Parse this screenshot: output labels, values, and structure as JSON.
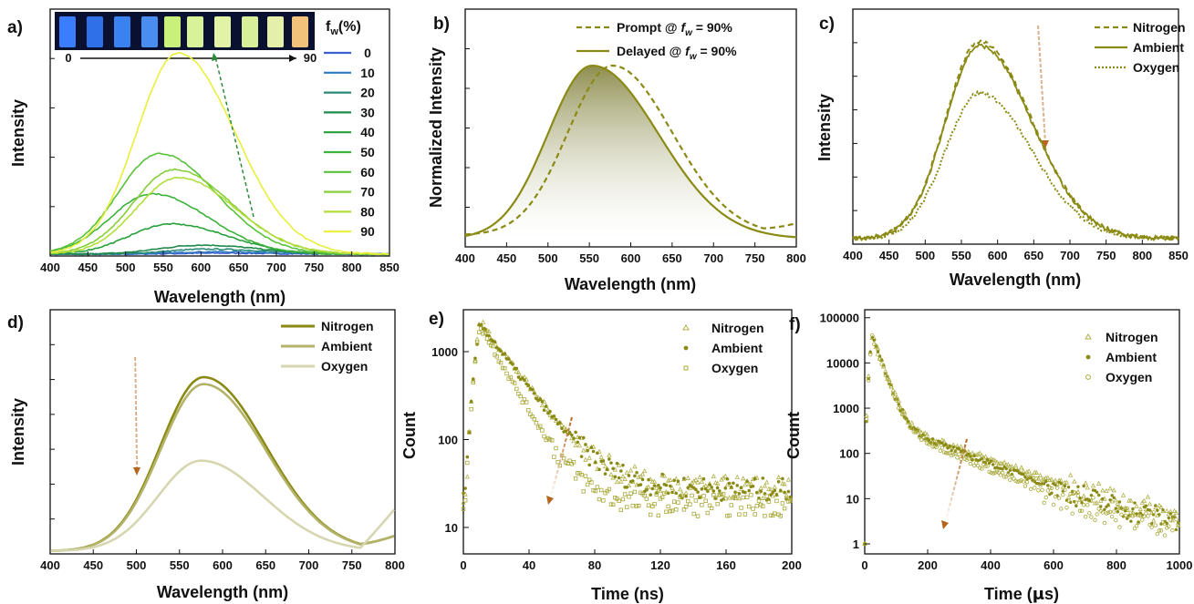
{
  "colors": {
    "olive": "#8a8a14",
    "olive_mid": "#b3b36a",
    "olive_light": "#d6d6b0",
    "arrow_green": "#2a8a3a",
    "arrow_brown": "#b5651d"
  },
  "chart_data": [
    {
      "panel": "a)",
      "type": "line",
      "xlabel": "Wavelength (nm)",
      "ylabel": "Intensity",
      "xlim": [
        400,
        850
      ],
      "xticks": [
        "400",
        "450",
        "500",
        "550",
        "600",
        "650",
        "700",
        "750",
        "800",
        "850"
      ],
      "legend_title": "f_w(%)",
      "legend_title_main": "f",
      "legend_title_sub": "w",
      "legend_title_unit": "(%)",
      "inset_labels": {
        "start": "0",
        "end": "90"
      },
      "series": [
        {
          "name": "0",
          "peak_nm": 620,
          "peak": 0.005,
          "color": "#3a5fd0"
        },
        {
          "name": "10",
          "peak_nm": 615,
          "peak": 0.012,
          "color": "#2f78c0"
        },
        {
          "name": "20",
          "peak_nm": 610,
          "peak": 0.025,
          "color": "#2a8a78"
        },
        {
          "name": "30",
          "peak_nm": 600,
          "peak": 0.045,
          "color": "#1f8a4a"
        },
        {
          "name": "40",
          "peak_nm": 560,
          "peak": 0.15,
          "color": "#27a03a"
        },
        {
          "name": "50",
          "peak_nm": 535,
          "peak": 0.3,
          "color": "#3cb23c"
        },
        {
          "name": "60",
          "peak_nm": 545,
          "peak": 0.5,
          "color": "#59c23a"
        },
        {
          "name": "70",
          "peak_nm": 565,
          "peak": 0.42,
          "color": "#86cf3a"
        },
        {
          "name": "80",
          "peak_nm": 570,
          "peak": 0.38,
          "color": "#b2de3a"
        },
        {
          "name": "90",
          "peak_nm": 570,
          "peak": 1.0,
          "color": "#e8ef3a"
        }
      ]
    },
    {
      "panel": "b)",
      "type": "line",
      "xlabel": "Wavelength (nm)",
      "ylabel": "Normalized Intensity",
      "xlim": [
        400,
        800
      ],
      "xticks": [
        "400",
        "450",
        "500",
        "550",
        "600",
        "650",
        "700",
        "750",
        "800"
      ],
      "series": [
        {
          "name": "Prompt @ f_w = 90%",
          "label_main": "Prompt @ ",
          "label_f": "f",
          "label_sub": "w",
          "label_tail": " = 90%",
          "style": "dashed",
          "peak_nm": 578,
          "peak": 1.0
        },
        {
          "name": "Delayed @ f_w = 90%",
          "label_main": "Delayed @ ",
          "label_f": "f",
          "label_sub": "w",
          "label_tail": " = 90%",
          "style": "solid",
          "peak_nm": 578,
          "peak": 1.0
        }
      ]
    },
    {
      "panel": "c)",
      "type": "line",
      "xlabel": "Wavelength (nm)",
      "ylabel": "Intensity",
      "xlim": [
        400,
        850
      ],
      "xticks": [
        "400",
        "450",
        "500",
        "550",
        "600",
        "650",
        "700",
        "750",
        "800",
        "850"
      ],
      "series": [
        {
          "name": "Nitrogen",
          "style": "dashed",
          "peak_nm": 575,
          "peak": 1.0
        },
        {
          "name": "Ambient",
          "style": "solid",
          "peak_nm": 575,
          "peak": 0.98
        },
        {
          "name": "Oxygen",
          "style": "dotted",
          "peak_nm": 575,
          "peak": 0.74
        }
      ]
    },
    {
      "panel": "d)",
      "type": "line",
      "xlabel": "Wavelength (nm)",
      "ylabel": "Intensity",
      "xlim": [
        400,
        800
      ],
      "xticks": [
        "400",
        "450",
        "500",
        "550",
        "600",
        "650",
        "700",
        "750",
        "800"
      ],
      "series": [
        {
          "name": "Nitrogen",
          "color": "#8a8a14",
          "peak_nm": 578,
          "peak": 1.0
        },
        {
          "name": "Ambient",
          "color": "#b3b36a",
          "peak_nm": 578,
          "peak": 0.96
        },
        {
          "name": "Oxygen",
          "color": "#d6d6b0",
          "peak_nm": 575,
          "peak": 0.52
        }
      ]
    },
    {
      "panel": "e)",
      "type": "scatter",
      "xlabel": "Time (ns)",
      "ylabel": "Count",
      "yscale": "log",
      "xlim": [
        0,
        200
      ],
      "ylim": [
        5,
        3000
      ],
      "xticks": [
        "0",
        "40",
        "80",
        "120",
        "160",
        "200"
      ],
      "yticks": [
        "10",
        "100",
        "1000"
      ],
      "series": [
        {
          "name": "Nitrogen",
          "marker": "triangle",
          "peak": 2200,
          "tau": 17,
          "floor": 28
        },
        {
          "name": "Ambient",
          "marker": "dot",
          "peak": 2100,
          "tau": 17,
          "floor": 27
        },
        {
          "name": "Oxygen",
          "marker": "square",
          "peak": 2000,
          "tau": 13,
          "floor": 18
        }
      ]
    },
    {
      "panel": "f)",
      "type": "scatter",
      "xlabel": "Time (μs)",
      "xlabel_main": "Time (",
      "xlabel_mu": "μ",
      "xlabel_tail": "s)",
      "ylabel": "Count",
      "yscale": "log",
      "xlim": [
        0,
        1000
      ],
      "ylim": [
        0.6,
        150000
      ],
      "xticks": [
        "0",
        "200",
        "400",
        "600",
        "800",
        "1000"
      ],
      "yticks": [
        "1",
        "10",
        "100",
        "1000",
        "10000",
        "100000"
      ],
      "series": [
        {
          "name": "Nitrogen",
          "marker": "triangle",
          "peak": 45000,
          "tau": 175
        },
        {
          "name": "Ambient",
          "marker": "dot",
          "peak": 42000,
          "tau": 160
        },
        {
          "name": "Oxygen",
          "marker": "circle",
          "peak": 40000,
          "tau": 140
        }
      ]
    }
  ]
}
